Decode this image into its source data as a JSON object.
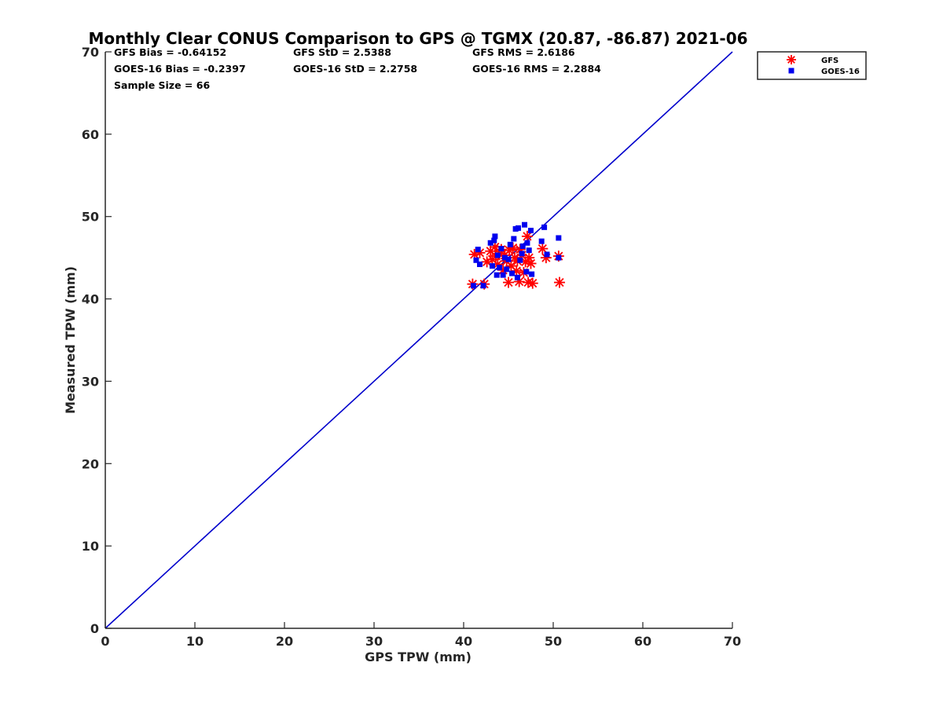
{
  "chart_data": {
    "type": "scatter",
    "title": "Monthly Clear CONUS Comparison to GPS @ TGMX (20.87, -86.87) 2021-06",
    "xlabel": "GPS TPW (mm)",
    "ylabel": "Measured TPW (mm)",
    "xlim": [
      0,
      70
    ],
    "ylim": [
      0,
      70
    ],
    "xticks": [
      "0",
      "10",
      "20",
      "30",
      "40",
      "50",
      "60",
      "70"
    ],
    "yticks": [
      "0",
      "10",
      "20",
      "30",
      "40",
      "50",
      "60",
      "70"
    ],
    "grid": false,
    "legend_position": "outside-top-right",
    "stats": [
      {
        "text": "GFS Bias = -0.64152",
        "row": 0,
        "col": 0
      },
      {
        "text": "GFS StD = 2.5388",
        "row": 0,
        "col": 1
      },
      {
        "text": "GFS RMS = 2.6186",
        "row": 0,
        "col": 2
      },
      {
        "text": "GOES-16 Bias = -0.2397",
        "row": 1,
        "col": 0
      },
      {
        "text": "GOES-16 StD = 2.2758",
        "row": 1,
        "col": 1
      },
      {
        "text": "GOES-16 RMS = 2.2884",
        "row": 1,
        "col": 2
      },
      {
        "text": "Sample Size = 66",
        "row": 2,
        "col": 0
      }
    ],
    "reference_line": {
      "x": [
        0,
        70
      ],
      "y": [
        0,
        70
      ],
      "color": "#0000cc"
    },
    "series": [
      {
        "name": "GFS",
        "marker": "asterisk",
        "color": "#ff0000",
        "points": [
          [
            41.0,
            41.8
          ],
          [
            41.2,
            45.4
          ],
          [
            41.8,
            45.6
          ],
          [
            42.3,
            41.8
          ],
          [
            42.6,
            44.5
          ],
          [
            43.0,
            45.8
          ],
          [
            43.2,
            44.8
          ],
          [
            43.5,
            46.3
          ],
          [
            43.6,
            45.2
          ],
          [
            43.8,
            44.2
          ],
          [
            44.0,
            45.5
          ],
          [
            44.2,
            46.0
          ],
          [
            44.4,
            43.5
          ],
          [
            44.6,
            45.3
          ],
          [
            44.8,
            44.6
          ],
          [
            45.0,
            42.0
          ],
          [
            45.1,
            45.9
          ],
          [
            45.3,
            44.0
          ],
          [
            45.5,
            46.2
          ],
          [
            45.7,
            45.0
          ],
          [
            45.9,
            43.4
          ],
          [
            46.0,
            44.6
          ],
          [
            46.2,
            42.1
          ],
          [
            46.3,
            46.0
          ],
          [
            46.5,
            45.3
          ],
          [
            46.7,
            43.2
          ],
          [
            46.9,
            44.5
          ],
          [
            47.1,
            47.6
          ],
          [
            47.2,
            42.0
          ],
          [
            47.3,
            45.0
          ],
          [
            47.5,
            44.3
          ],
          [
            47.7,
            41.9
          ],
          [
            48.8,
            46.1
          ],
          [
            49.2,
            45.0
          ],
          [
            50.6,
            45.2
          ],
          [
            50.7,
            42.0
          ]
        ]
      },
      {
        "name": "GOES-16",
        "marker": "square",
        "color": "#0000ee",
        "points": [
          [
            41.1,
            41.6
          ],
          [
            41.4,
            44.7
          ],
          [
            41.6,
            46.0
          ],
          [
            41.8,
            44.2
          ],
          [
            42.2,
            41.6
          ],
          [
            43.0,
            46.8
          ],
          [
            43.2,
            44.0
          ],
          [
            43.4,
            47.1
          ],
          [
            43.5,
            47.6
          ],
          [
            43.7,
            42.9
          ],
          [
            43.8,
            45.3
          ],
          [
            44.0,
            43.8
          ],
          [
            44.2,
            46.1
          ],
          [
            44.4,
            42.9
          ],
          [
            44.6,
            45.0
          ],
          [
            44.8,
            43.6
          ],
          [
            45.0,
            44.8
          ],
          [
            45.2,
            46.6
          ],
          [
            45.4,
            43.1
          ],
          [
            45.6,
            47.3
          ],
          [
            45.8,
            48.5
          ],
          [
            46.0,
            42.6
          ],
          [
            46.1,
            48.6
          ],
          [
            46.3,
            44.7
          ],
          [
            46.5,
            45.5
          ],
          [
            46.6,
            46.4
          ],
          [
            46.8,
            49.0
          ],
          [
            47.0,
            43.3
          ],
          [
            47.1,
            46.8
          ],
          [
            47.3,
            45.9
          ],
          [
            47.5,
            48.3
          ],
          [
            47.6,
            43.0
          ],
          [
            48.7,
            47.0
          ],
          [
            49.0,
            48.7
          ],
          [
            49.3,
            45.4
          ],
          [
            50.6,
            47.4
          ],
          [
            50.6,
            45.0
          ]
        ]
      }
    ]
  }
}
